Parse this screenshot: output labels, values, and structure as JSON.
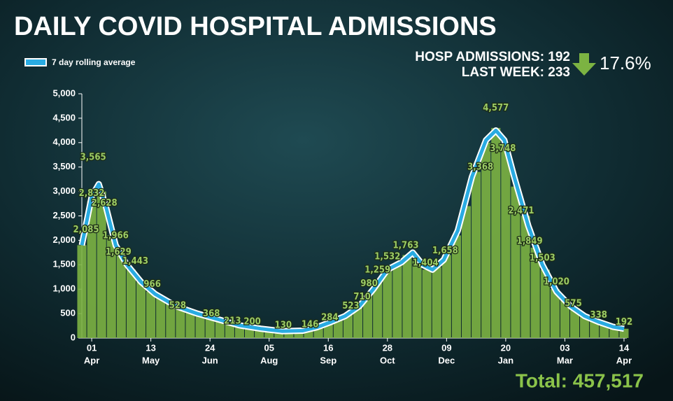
{
  "chart_data": {
    "type": "bar",
    "title": "DAILY COVID HOSPITAL ADMISSIONS",
    "stat_line_1": "HOSP ADMISSIONS: 192",
    "stat_line_2": "LAST WEEK: 233",
    "change": "17.6%",
    "total": "Total: 457,517",
    "xlim": [
      -7,
      380
    ],
    "ylim": [
      0,
      5000
    ],
    "yticks": [
      0,
      500,
      {
        "value": 1000,
        "label": "1,000"
      },
      {
        "value": 1500,
        "label": "1,500"
      },
      {
        "value": 2000,
        "label": "2,000"
      },
      {
        "value": 2500,
        "label": "2,500"
      },
      {
        "value": 3000,
        "label": "3,000"
      },
      {
        "value": 3500,
        "label": "3,500"
      },
      {
        "value": 4000,
        "label": "4,000"
      },
      {
        "value": 4500,
        "label": "4,500"
      },
      {
        "value": 5000,
        "label": "5,000"
      }
    ],
    "xticks": [
      {
        "value": 0,
        "label": "01",
        "month": "Apr"
      },
      {
        "value": 42,
        "label": "13",
        "month": "May"
      },
      {
        "value": 84,
        "label": "24",
        "month": "Jun"
      },
      {
        "value": 126,
        "label": "05",
        "month": "Aug"
      },
      {
        "value": 168,
        "label": "16",
        "month": "Sep"
      },
      {
        "value": 210,
        "label": "28",
        "month": "Oct"
      },
      {
        "value": 252,
        "label": "09",
        "month": "Dec"
      },
      {
        "value": 294,
        "label": "20",
        "month": "Jan"
      },
      {
        "value": 336,
        "label": "03",
        "month": "Mar"
      },
      {
        "value": 378,
        "label": "14",
        "month": "Apr"
      }
    ],
    "bars": {
      "color": "#7cb342",
      "x": [
        -7,
        0,
        7,
        14,
        21,
        28,
        35,
        42,
        49,
        56,
        63,
        70,
        77,
        84,
        91,
        98,
        105,
        112,
        119,
        126,
        133,
        140,
        147,
        154,
        161,
        168,
        175,
        182,
        189,
        196,
        203,
        210,
        217,
        224,
        231,
        238,
        245,
        252,
        259,
        266,
        273,
        280,
        287,
        294,
        301,
        308,
        315,
        322,
        329,
        336,
        343,
        350,
        357,
        364,
        371,
        378
      ],
      "values": [
        1900,
        2800,
        3000,
        2100,
        1700,
        1400,
        1150,
        950,
        820,
        700,
        600,
        530,
        460,
        400,
        370,
        300,
        250,
        210,
        190,
        160,
        140,
        135,
        140,
        150,
        230,
        310,
        390,
        480,
        620,
        870,
        1150,
        1420,
        1500,
        1700,
        1600,
        1400,
        1450,
        1700,
        2100,
        2700,
        3400,
        4000,
        4300,
        3900,
        3100,
        2500,
        1850,
        1400,
        1000,
        780,
        600,
        450,
        360,
        300,
        230,
        190
      ]
    },
    "line": {
      "name": "7 day rolling average",
      "color": "#29abe2",
      "x": [
        -7,
        0,
        5,
        10,
        17,
        25,
        35,
        45,
        60,
        75,
        90,
        105,
        120,
        135,
        150,
        160,
        170,
        180,
        190,
        200,
        210,
        220,
        228,
        235,
        242,
        250,
        260,
        270,
        280,
        287,
        293,
        300,
        310,
        320,
        330,
        340,
        350,
        360,
        370,
        378
      ],
      "values": [
        1900,
        2900,
        3150,
        2700,
        1900,
        1500,
        1150,
        900,
        650,
        500,
        380,
        260,
        190,
        140,
        150,
        220,
        330,
        450,
        650,
        1000,
        1400,
        1550,
        1750,
        1500,
        1400,
        1600,
        2200,
        3300,
        4050,
        4250,
        4050,
        3300,
        2300,
        1500,
        950,
        650,
        450,
        330,
        230,
        190
      ]
    },
    "labels": {
      "x": [
        -4,
        1,
        0,
        9,
        17,
        19,
        31,
        43,
        61,
        85,
        100,
        114,
        136,
        155,
        169,
        184,
        192,
        197,
        203,
        210,
        223,
        237,
        251,
        276,
        287,
        292,
        305,
        311,
        320,
        330,
        342,
        360,
        378
      ],
      "values": [
        2085,
        3565,
        2832,
        2628,
        1966,
        1629,
        1443,
        966,
        528,
        368,
        213,
        200,
        130,
        146,
        284,
        523,
        710,
        980,
        1259,
        1532,
        1763,
        1404,
        1658,
        3368,
        4577,
        3748,
        2471,
        1849,
        1503,
        1020,
        575,
        338,
        192
      ],
      "value_labels": [
        "2,085",
        "3,565",
        "2,832",
        "2,628",
        "1,966",
        "1,629",
        "1,443",
        "966",
        "528",
        "368",
        "213",
        "200",
        "130",
        "146",
        "284",
        "523",
        "710",
        "980",
        "1,259",
        "1,532",
        "1,763",
        "1,404",
        "1,658",
        "3,368",
        "4,577",
        "3,748",
        "2,471",
        "1,849",
        "1,503",
        "1,020",
        "575",
        "338",
        "192"
      ]
    }
  }
}
